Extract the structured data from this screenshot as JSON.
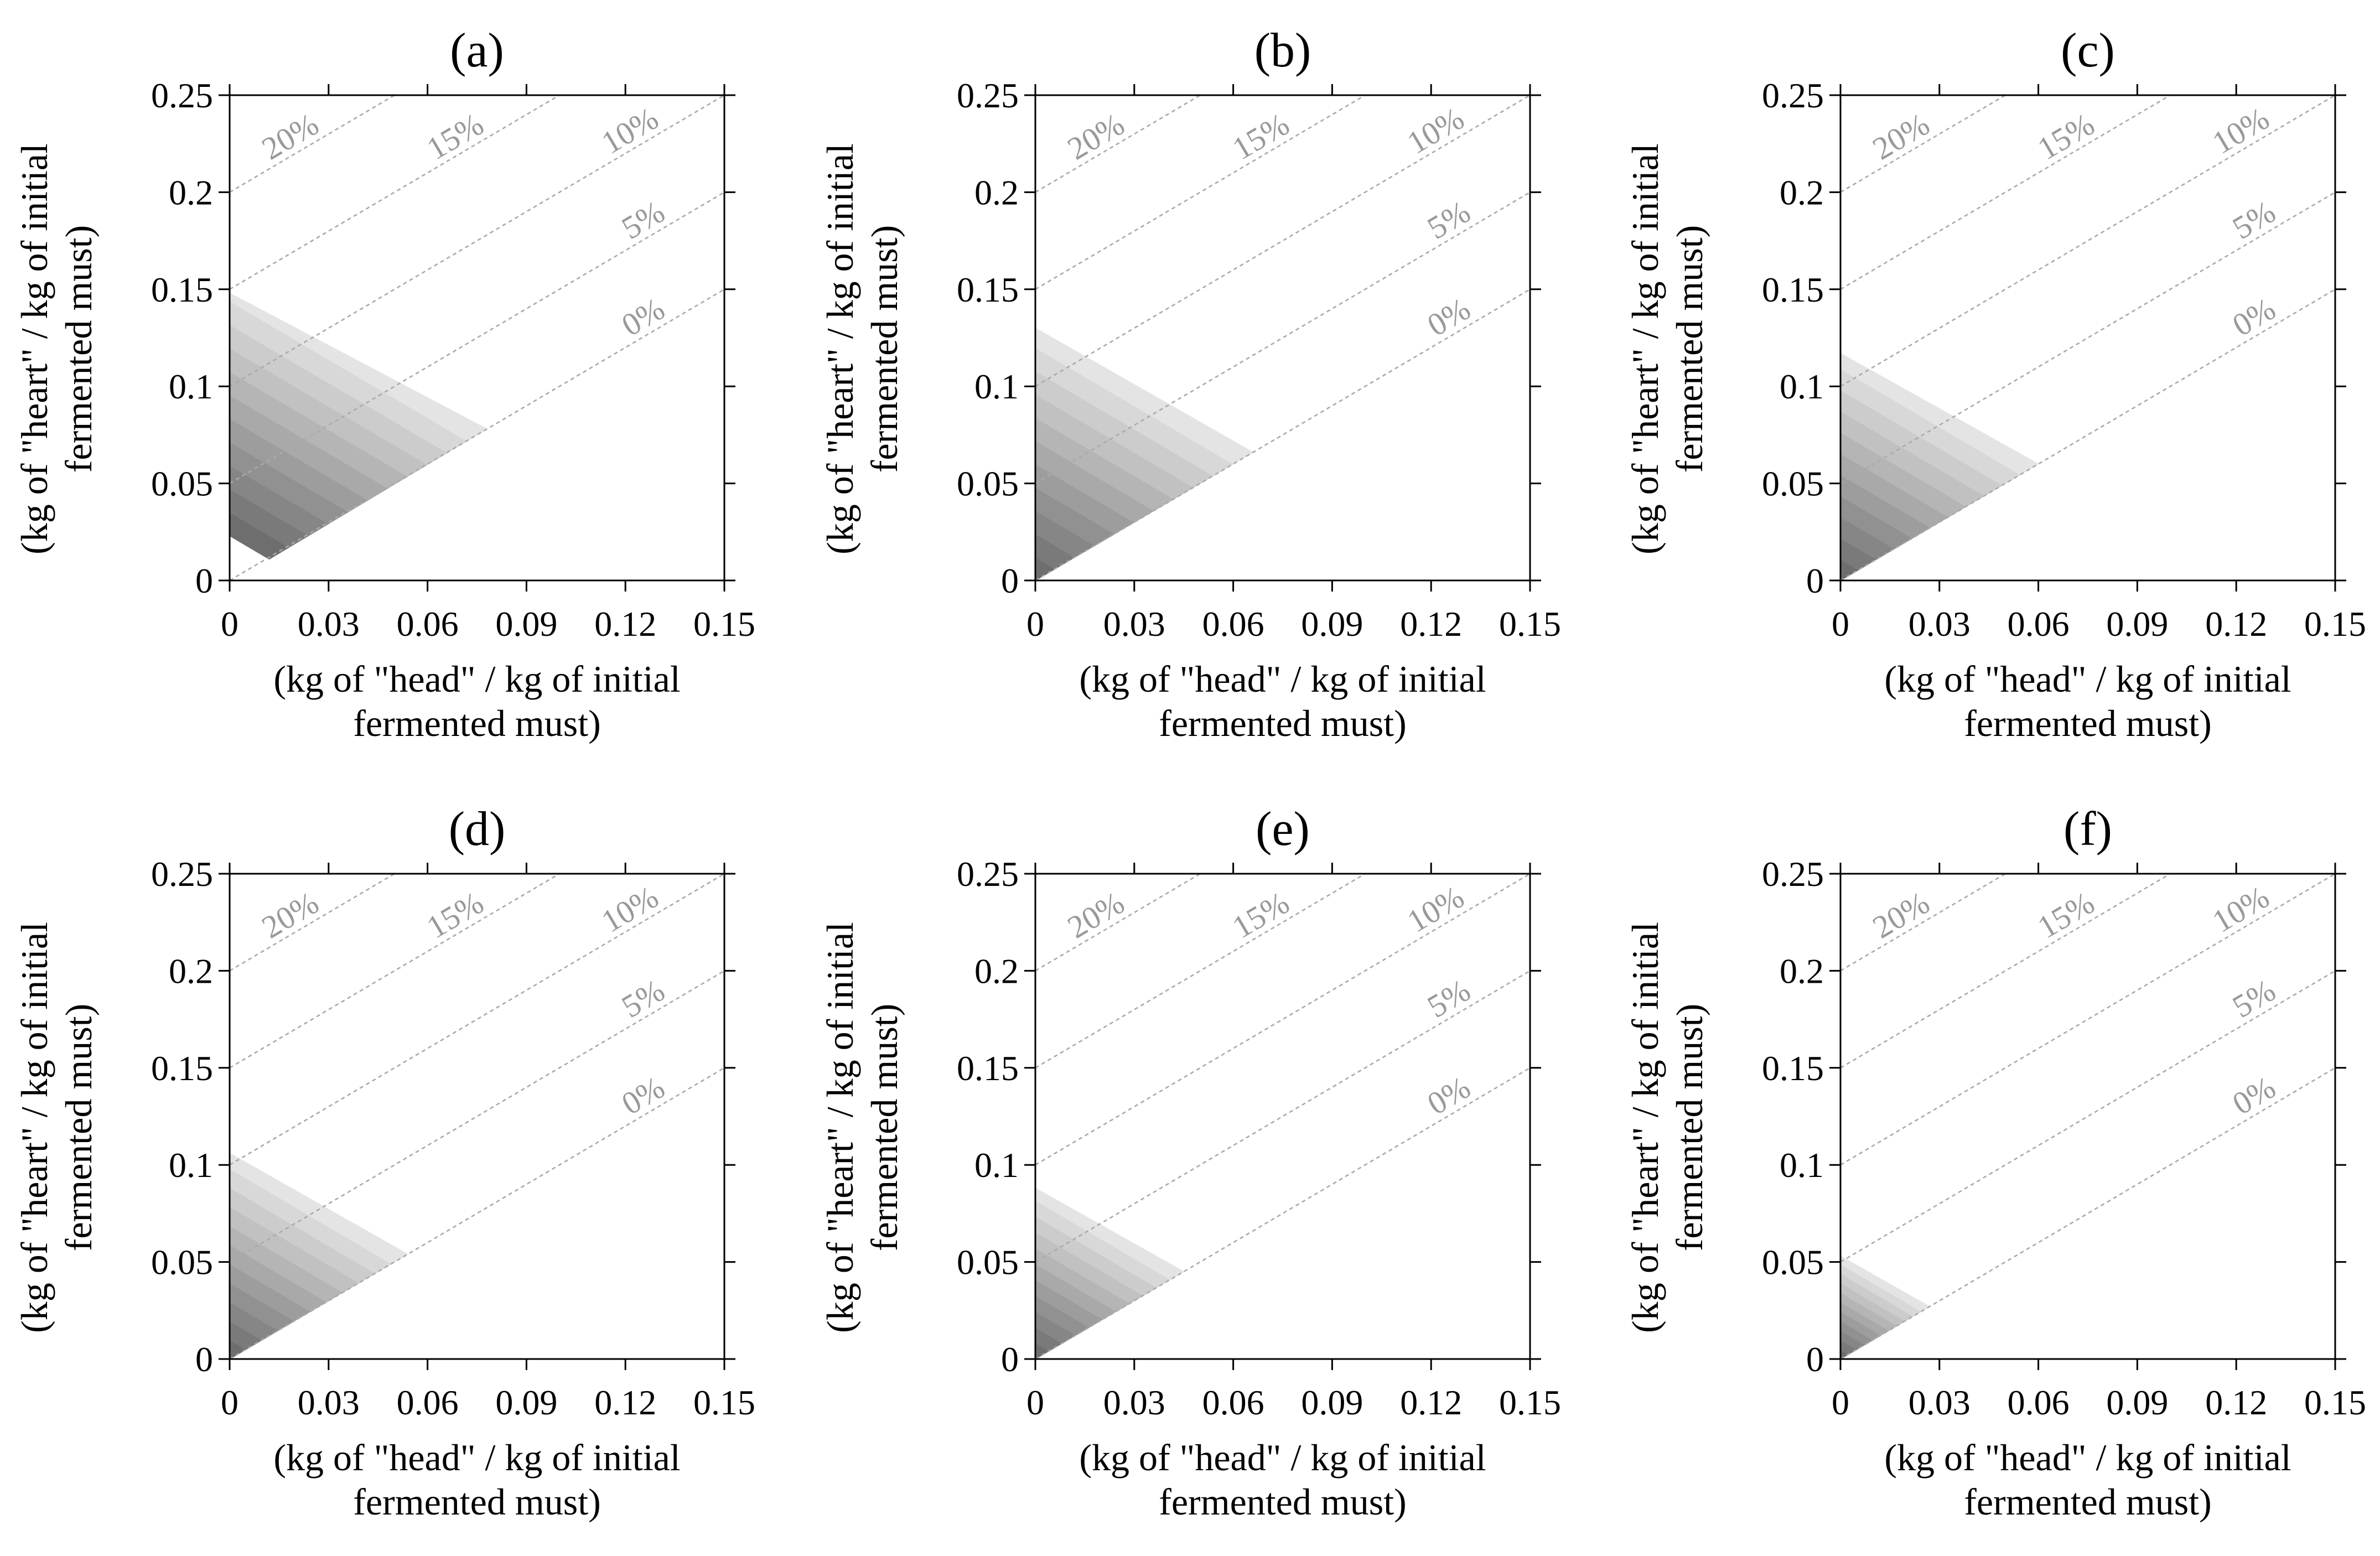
{
  "figure": {
    "panel_count": 6,
    "layout": "2 rows x 3 columns"
  },
  "colors": {
    "axis": "#000000",
    "iso_line": "#aaaaaa",
    "iso_label": "#999999",
    "contour_dark": "#6e6e6e",
    "contour_light": "#e4e4e4"
  },
  "chart_data": [
    {
      "type": "contour",
      "title": "(a)",
      "xlabel": [
        "(kg of \"head\" / kg of initial",
        "fermented must)"
      ],
      "ylabel": [
        "(kg of \"heart\" / kg of initial",
        "fermented must)"
      ],
      "xlim": [
        0,
        0.15
      ],
      "ylim": [
        0,
        0.25
      ],
      "xticks": [
        0,
        0.03,
        0.06,
        0.09,
        0.12,
        0.15
      ],
      "xtick_labels": [
        "0",
        "0.03",
        "0.06",
        "0.09",
        "0.12",
        "0.15"
      ],
      "yticks": [
        0,
        0.05,
        0.1,
        0.15,
        0.2,
        0.25
      ],
      "ytick_labels": [
        "0",
        "0.05",
        "0.1",
        "0.15",
        "0.2",
        "0.25"
      ],
      "iso_lines": [
        {
          "label": "20%",
          "intercept": 0.2
        },
        {
          "label": "15%",
          "intercept": 0.15
        },
        {
          "label": "10%",
          "intercept": 0.1
        },
        {
          "label": "5%",
          "intercept": 0.05
        },
        {
          "label": "0%",
          "intercept": 0
        }
      ],
      "iso_slope": 1,
      "feasible_region": {
        "vertices": [
          [
            0,
            0.148
          ],
          [
            0.078,
            0.078
          ],
          [
            0.012,
            0.011
          ],
          [
            0,
            0.023
          ]
        ],
        "contour_levels": 11
      }
    },
    {
      "type": "contour",
      "title": "(b)",
      "xlabel": [
        "(kg of \"head\" / kg of initial",
        "fermented must)"
      ],
      "ylabel": [
        "(kg of \"heart\" / kg of initial",
        "fermented must)"
      ],
      "xlim": [
        0,
        0.15
      ],
      "ylim": [
        0,
        0.25
      ],
      "xticks": [
        0,
        0.03,
        0.06,
        0.09,
        0.12,
        0.15
      ],
      "xtick_labels": [
        "0",
        "0.03",
        "0.06",
        "0.09",
        "0.12",
        "0.15"
      ],
      "yticks": [
        0,
        0.05,
        0.1,
        0.15,
        0.2,
        0.25
      ],
      "ytick_labels": [
        "0",
        "0.05",
        "0.1",
        "0.15",
        "0.2",
        "0.25"
      ],
      "iso_lines": [
        {
          "label": "20%",
          "intercept": 0.2
        },
        {
          "label": "15%",
          "intercept": 0.15
        },
        {
          "label": "10%",
          "intercept": 0.1
        },
        {
          "label": "5%",
          "intercept": 0.05
        },
        {
          "label": "0%",
          "intercept": 0
        }
      ],
      "iso_slope": 1,
      "feasible_region": {
        "vertices": [
          [
            0,
            0.13
          ],
          [
            0.066,
            0.066
          ],
          [
            0,
            0
          ]
        ],
        "contour_levels": 11
      }
    },
    {
      "type": "contour",
      "title": "(c)",
      "xlabel": [
        "(kg of \"head\" / kg of initial",
        "fermented must)"
      ],
      "ylabel": [
        "(kg of \"heart\" / kg of initial",
        "fermented must)"
      ],
      "xlim": [
        0,
        0.15
      ],
      "ylim": [
        0,
        0.25
      ],
      "xticks": [
        0,
        0.03,
        0.06,
        0.09,
        0.12,
        0.15
      ],
      "xtick_labels": [
        "0",
        "0.03",
        "0.06",
        "0.09",
        "0.12",
        "0.15"
      ],
      "yticks": [
        0,
        0.05,
        0.1,
        0.15,
        0.2,
        0.25
      ],
      "ytick_labels": [
        "0",
        "0.05",
        "0.1",
        "0.15",
        "0.2",
        "0.25"
      ],
      "iso_lines": [
        {
          "label": "20%",
          "intercept": 0.2
        },
        {
          "label": "15%",
          "intercept": 0.15
        },
        {
          "label": "10%",
          "intercept": 0.1
        },
        {
          "label": "5%",
          "intercept": 0.05
        },
        {
          "label": "0%",
          "intercept": 0
        }
      ],
      "iso_slope": 1,
      "feasible_region": {
        "vertices": [
          [
            0,
            0.117
          ],
          [
            0.06,
            0.06
          ],
          [
            0,
            0
          ]
        ],
        "contour_levels": 11
      }
    },
    {
      "type": "contour",
      "title": "(d)",
      "xlabel": [
        "(kg of \"head\" / kg of initial",
        "fermented must)"
      ],
      "ylabel": [
        "(kg of \"heart\" / kg of initial",
        "fermented must)"
      ],
      "xlim": [
        0,
        0.15
      ],
      "ylim": [
        0,
        0.25
      ],
      "xticks": [
        0,
        0.03,
        0.06,
        0.09,
        0.12,
        0.15
      ],
      "xtick_labels": [
        "0",
        "0.03",
        "0.06",
        "0.09",
        "0.12",
        "0.15"
      ],
      "yticks": [
        0,
        0.05,
        0.1,
        0.15,
        0.2,
        0.25
      ],
      "ytick_labels": [
        "0",
        "0.05",
        "0.1",
        "0.15",
        "0.2",
        "0.25"
      ],
      "iso_lines": [
        {
          "label": "20%",
          "intercept": 0.2
        },
        {
          "label": "15%",
          "intercept": 0.15
        },
        {
          "label": "10%",
          "intercept": 0.1
        },
        {
          "label": "5%",
          "intercept": 0.05
        },
        {
          "label": "0%",
          "intercept": 0
        }
      ],
      "iso_slope": 1,
      "feasible_region": {
        "vertices": [
          [
            0,
            0.106
          ],
          [
            0.054,
            0.054
          ],
          [
            0,
            0
          ]
        ],
        "contour_levels": 11
      }
    },
    {
      "type": "contour",
      "title": "(e)",
      "xlabel": [
        "(kg of \"head\" / kg of initial",
        "fermented must)"
      ],
      "ylabel": [
        "(kg of \"heart\" / kg of initial",
        "fermented must)"
      ],
      "xlim": [
        0,
        0.15
      ],
      "ylim": [
        0,
        0.25
      ],
      "xticks": [
        0,
        0.03,
        0.06,
        0.09,
        0.12,
        0.15
      ],
      "xtick_labels": [
        "0",
        "0.03",
        "0.06",
        "0.09",
        "0.12",
        "0.15"
      ],
      "yticks": [
        0,
        0.05,
        0.1,
        0.15,
        0.2,
        0.25
      ],
      "ytick_labels": [
        "0",
        "0.05",
        "0.1",
        "0.15",
        "0.2",
        "0.25"
      ],
      "iso_lines": [
        {
          "label": "20%",
          "intercept": 0.2
        },
        {
          "label": "15%",
          "intercept": 0.15
        },
        {
          "label": "10%",
          "intercept": 0.1
        },
        {
          "label": "5%",
          "intercept": 0.05
        },
        {
          "label": "0%",
          "intercept": 0
        }
      ],
      "iso_slope": 1,
      "feasible_region": {
        "vertices": [
          [
            0,
            0.088
          ],
          [
            0.045,
            0.045
          ],
          [
            0,
            0
          ]
        ],
        "contour_levels": 11
      }
    },
    {
      "type": "contour",
      "title": "(f)",
      "xlabel": [
        "(kg of \"head\" / kg of initial",
        "fermented must)"
      ],
      "ylabel": [
        "(kg of \"heart\" / kg of initial",
        "fermented must)"
      ],
      "xlim": [
        0,
        0.15
      ],
      "ylim": [
        0,
        0.25
      ],
      "xticks": [
        0,
        0.03,
        0.06,
        0.09,
        0.12,
        0.15
      ],
      "xtick_labels": [
        "0",
        "0.03",
        "0.06",
        "0.09",
        "0.12",
        "0.15"
      ],
      "yticks": [
        0,
        0.05,
        0.1,
        0.15,
        0.2,
        0.25
      ],
      "ytick_labels": [
        "0",
        "0.05",
        "0.1",
        "0.15",
        "0.2",
        "0.25"
      ],
      "iso_lines": [
        {
          "label": "20%",
          "intercept": 0.2
        },
        {
          "label": "15%",
          "intercept": 0.15
        },
        {
          "label": "10%",
          "intercept": 0.1
        },
        {
          "label": "5%",
          "intercept": 0.05
        },
        {
          "label": "0%",
          "intercept": 0
        }
      ],
      "iso_slope": 1,
      "feasible_region": {
        "vertices": [
          [
            0,
            0.053
          ],
          [
            0.027,
            0.027
          ],
          [
            0,
            0
          ]
        ],
        "contour_levels": 11
      }
    }
  ]
}
